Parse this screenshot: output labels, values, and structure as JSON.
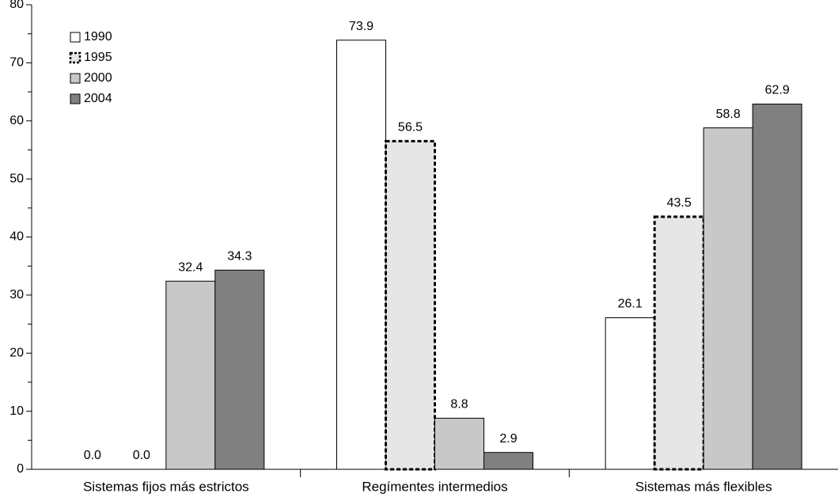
{
  "chart_data": {
    "type": "bar",
    "categories": [
      "Sistemas fijos más estrictos",
      "Regímentes intermedios",
      "Sistemas más flexibles"
    ],
    "series": [
      {
        "name": "1990",
        "color": "#ffffff",
        "border": "solid",
        "values": [
          0,
          73.9,
          26.1
        ],
        "value_labels": [
          "0.0",
          "73.9",
          "26.1"
        ]
      },
      {
        "name": "1995",
        "color": "#e6e6e6",
        "border": "dashed",
        "values": [
          0,
          56.5,
          43.5
        ],
        "value_labels": [
          "0.0",
          "56.5",
          "43.5"
        ]
      },
      {
        "name": "2000",
        "color": "#c8c8c8",
        "border": "solid",
        "values": [
          32.4,
          8.8,
          58.8
        ],
        "value_labels": [
          "32.4",
          "8.8",
          "58.8"
        ]
      },
      {
        "name": "2004",
        "color": "#808080",
        "border": "solid",
        "values": [
          34.3,
          2.9,
          62.9
        ],
        "value_labels": [
          "34.3",
          "2.9",
          "62.9"
        ]
      }
    ],
    "ylim": [
      0,
      80
    ],
    "yticks": [
      0,
      10,
      20,
      30,
      40,
      50,
      60,
      70,
      80
    ],
    "minor_yticks": [
      5,
      15,
      25,
      35,
      45,
      55,
      65,
      75
    ],
    "legend": "upper-left",
    "grid": false
  }
}
